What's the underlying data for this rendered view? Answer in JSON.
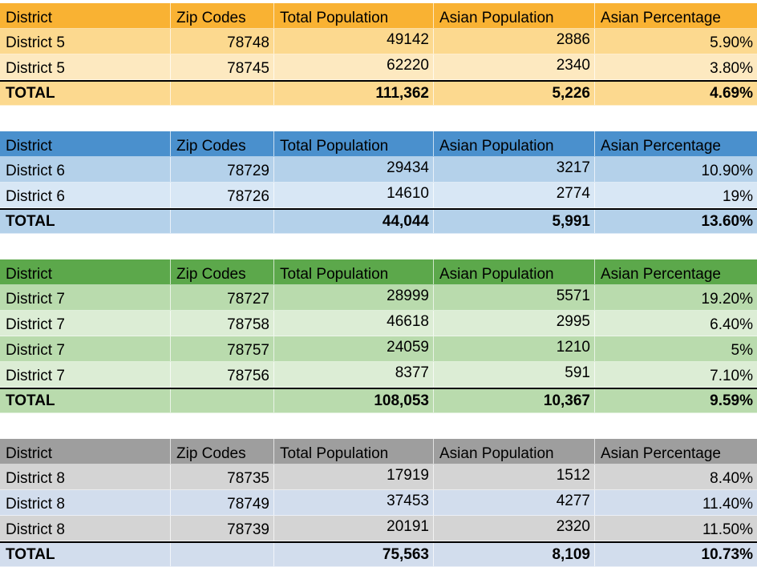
{
  "headers": [
    "District",
    "Zip Codes",
    "Total Population",
    "Asian Population",
    "Asian Percentage"
  ],
  "tables": [
    {
      "colors": {
        "header": "#f9b233",
        "row_a": "#fcd98f",
        "row_b": "#fde9c0",
        "total": "#fcd98f"
      },
      "rows": [
        [
          "District 5",
          "78748",
          "49142",
          "2886",
          "5.90%"
        ],
        [
          "District 5",
          "78745",
          "62220",
          "2340",
          "3.80%"
        ]
      ],
      "total": [
        "TOTAL",
        "",
        "111,362",
        "5,226",
        "4.69%"
      ]
    },
    {
      "colors": {
        "header": "#4a90cd",
        "row_a": "#b4d1ea",
        "row_b": "#d8e7f5",
        "total": "#b4d1ea"
      },
      "rows": [
        [
          "District 6",
          "78729",
          "29434",
          "3217",
          "10.90%"
        ],
        [
          "District 6",
          "78726",
          "14610",
          "2774",
          "19%"
        ]
      ],
      "total": [
        "TOTAL",
        "",
        "44,044",
        "5,991",
        "13.60%"
      ]
    },
    {
      "colors": {
        "header": "#5ca84b",
        "row_a": "#b9dbad",
        "row_b": "#dcedd5",
        "total": "#b9dbad"
      },
      "rows": [
        [
          "District 7",
          "78727",
          "28999",
          "5571",
          "19.20%"
        ],
        [
          "District 7",
          "78758",
          "46618",
          "2995",
          "6.40%"
        ],
        [
          "District 7",
          "78757",
          "24059",
          "1210",
          "5%"
        ],
        [
          "District 7",
          "78756",
          "8377",
          "591",
          "7.10%"
        ]
      ],
      "total": [
        "TOTAL",
        "",
        "108,053",
        "10,367",
        "9.59%"
      ]
    },
    {
      "colors": {
        "header": "#9e9e9e",
        "row_a": "#d4d4d4",
        "row_b": "#d2dded",
        "total": "#d2dded"
      },
      "rows": [
        [
          "District 8",
          "78735",
          "17919",
          "1512",
          "8.40%"
        ],
        [
          "District 8",
          "78749",
          "37453",
          "4277",
          "11.40%"
        ],
        [
          "District 8",
          "78739",
          "20191",
          "2320",
          "11.50%"
        ]
      ],
      "total": [
        "TOTAL",
        "",
        "75,563",
        "8,109",
        "10.73%"
      ]
    }
  ]
}
